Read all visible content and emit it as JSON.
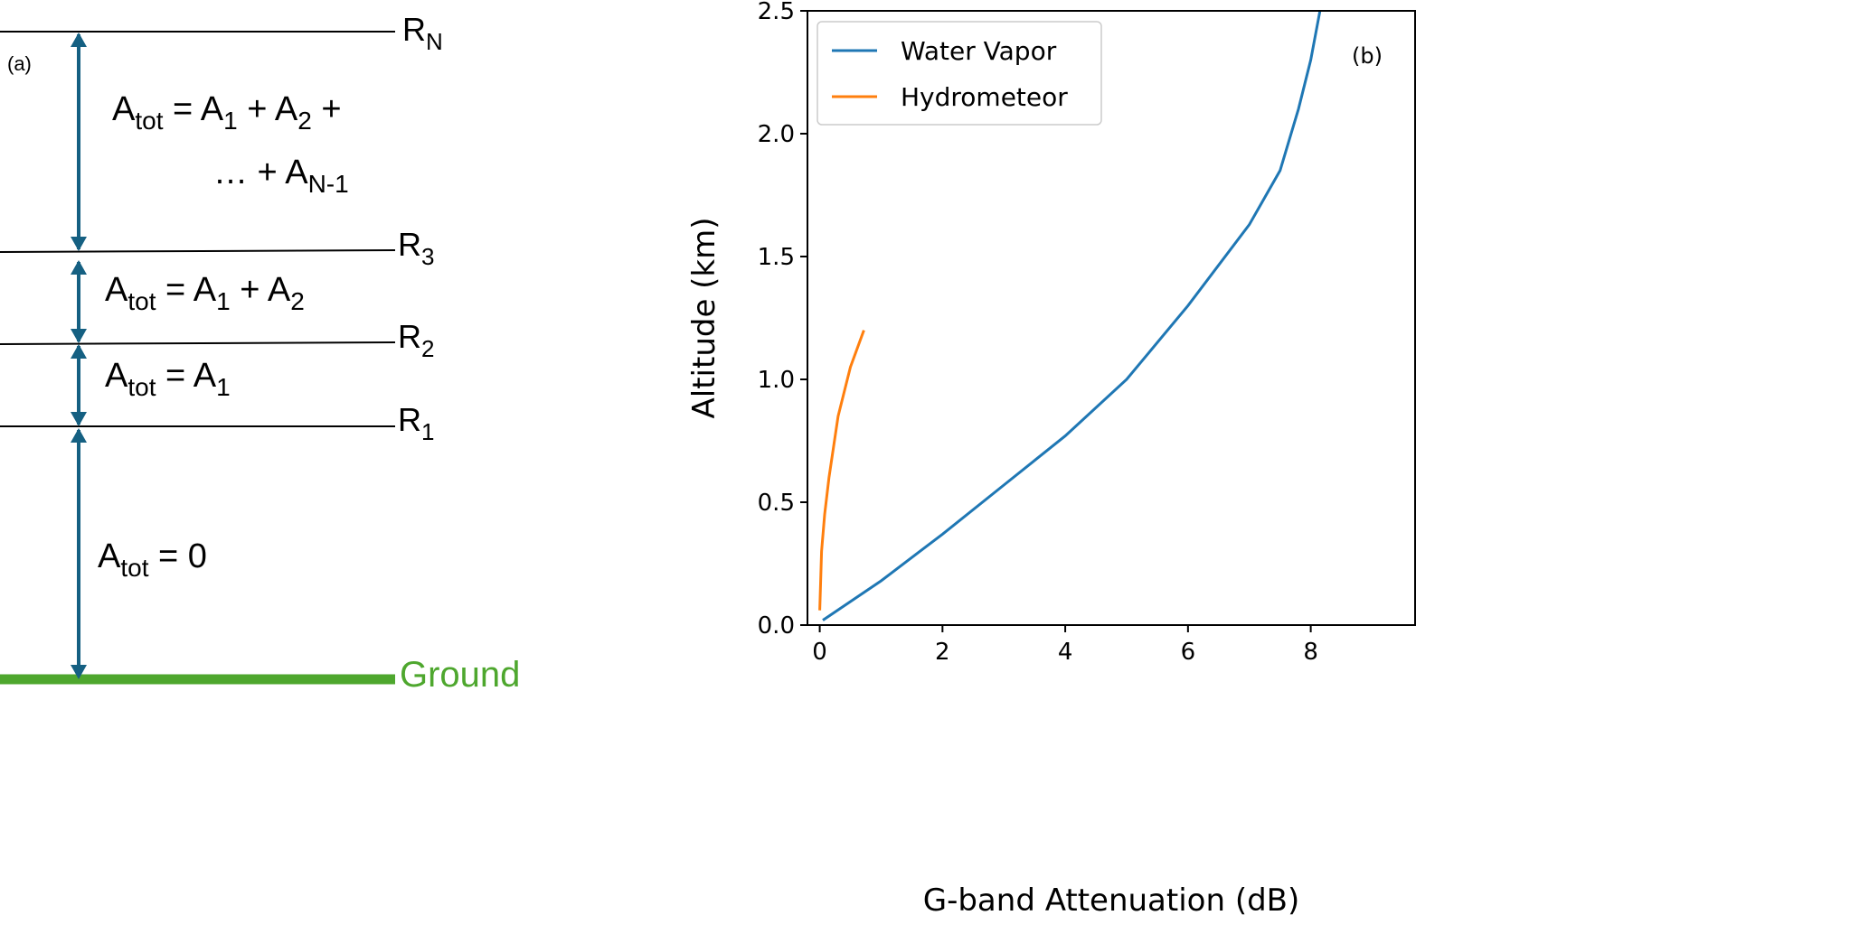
{
  "diagram": {
    "panel_label": "(a)",
    "levels": [
      {
        "label": "R",
        "sub": "N"
      },
      {
        "label": "R",
        "sub": "3"
      },
      {
        "label": "R",
        "sub": "2"
      },
      {
        "label": "R",
        "sub": "1"
      }
    ],
    "ground_label": "Ground",
    "ground_color": "#4ea72e",
    "arrow_color": "#156082",
    "equations": {
      "top_line1": {
        "a": "A",
        "tot": "tot",
        "rest": " = A",
        "s1": "1",
        "plus": " + A",
        "s2": "2",
        "end": " +"
      },
      "top_line2": {
        "dots": "… + A",
        "sub": "N-1"
      },
      "r2r3": {
        "a": "A",
        "tot": "tot",
        "rest": " = A",
        "s1": "1",
        "plus": " + A",
        "s2": "2"
      },
      "r1r2": {
        "a": "A",
        "tot": "tot",
        "rest": " = A",
        "s1": "1"
      },
      "ground": {
        "a": "A",
        "tot": "tot",
        "rest": " = 0"
      }
    }
  },
  "chart_data": {
    "type": "line",
    "panel_label": "(b)",
    "xlabel": "G-band Attenuation (dB)",
    "ylabel": "Altitude (km)",
    "xlim": [
      -0.2,
      9.7
    ],
    "ylim": [
      0,
      2.5
    ],
    "xticks": [
      "0",
      "2",
      "4",
      "6",
      "8"
    ],
    "yticks": [
      "0.0",
      "0.5",
      "1.0",
      "1.5",
      "2.0",
      "2.5"
    ],
    "grid": false,
    "legend": "top-left",
    "series": [
      {
        "name": "Water Vapor",
        "color": "#1f77b4",
        "x": [
          0.05,
          1,
          2,
          3,
          4,
          5,
          6,
          7,
          7.5,
          7.8,
          8.0,
          8.15
        ],
        "y": [
          0.02,
          0.18,
          0.37,
          0.57,
          0.77,
          1.0,
          1.3,
          1.63,
          1.85,
          2.1,
          2.3,
          2.5
        ]
      },
      {
        "name": "Hydrometeor",
        "color": "#ff7f0e",
        "x": [
          0.0,
          0.03,
          0.08,
          0.15,
          0.3,
          0.5,
          0.72
        ],
        "y": [
          0.06,
          0.3,
          0.45,
          0.6,
          0.85,
          1.05,
          1.2
        ]
      }
    ]
  }
}
